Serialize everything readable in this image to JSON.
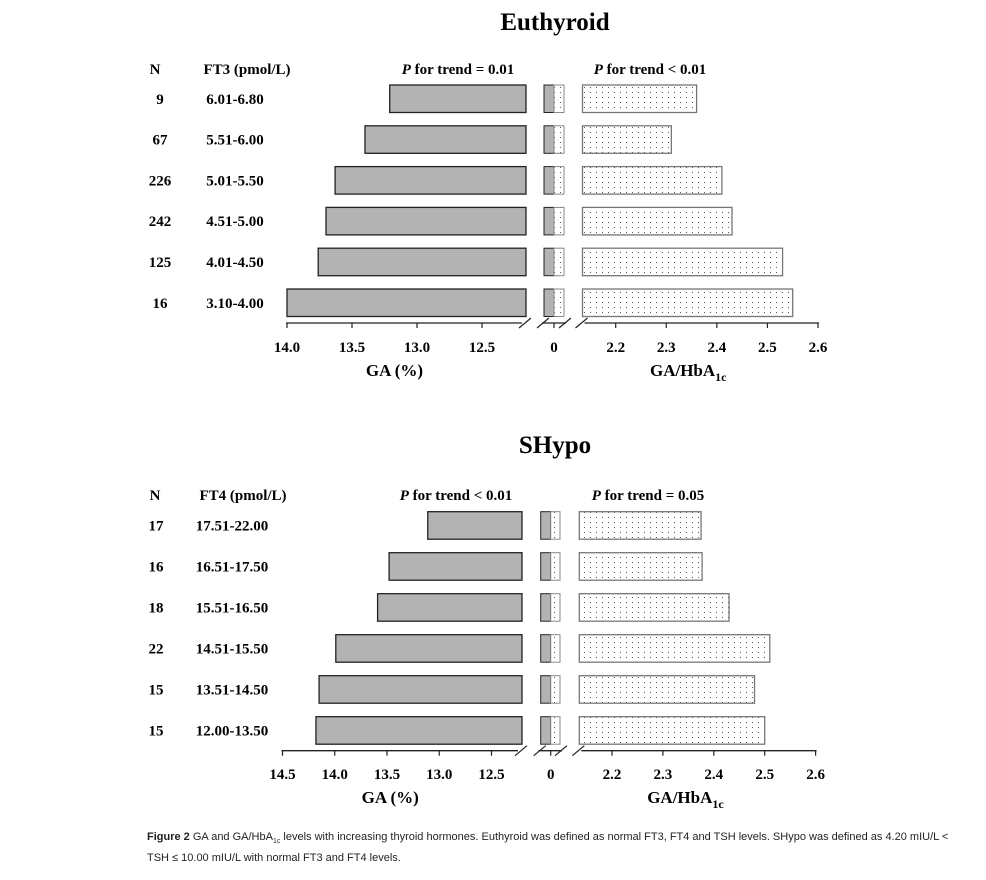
{
  "chart_data": [
    {
      "type": "bar",
      "orientation": "horizontal",
      "title": "Euthyroid",
      "n_header": "N",
      "category_header": "FT3 (pmol/L)",
      "n": [
        "9",
        "67",
        "226",
        "242",
        "125",
        "16"
      ],
      "categories": [
        "6.01-6.80",
        "5.51-6.00",
        "5.01-5.50",
        "4.51-5.00",
        "4.01-4.50",
        "3.10-4.00"
      ],
      "left": {
        "xlabel": "GA (%)",
        "trend_italic": "P",
        "trend": " for trend = 0.01",
        "values": [
          13.21,
          13.4,
          13.63,
          13.7,
          13.76,
          14.0
        ],
        "ticks": [
          "14.0",
          "13.5",
          "13.0",
          "12.5"
        ],
        "axis": "reversed, broken",
        "xlim": [
          14.0,
          12.17
        ],
        "fill": "#b3b3b3"
      },
      "break_tick": "0",
      "right": {
        "xlabel_main": "GA/HbA",
        "xlabel_sub": "1c",
        "trend_italic": "P",
        "trend": " for trend < 0.01",
        "values": [
          2.36,
          2.31,
          2.41,
          2.43,
          2.53,
          2.55
        ],
        "ticks": [
          "2.2",
          "2.3",
          "2.4",
          "2.5",
          "2.6"
        ],
        "axis": "broken",
        "xlim": [
          2.13,
          2.6
        ],
        "fill": "dotted"
      }
    },
    {
      "type": "bar",
      "orientation": "horizontal",
      "title": "SHypo",
      "n_header": "N",
      "category_header": "FT4 (pmol/L)",
      "n": [
        "17",
        "16",
        "18",
        "22",
        "15",
        "15"
      ],
      "categories": [
        "17.51-22.00",
        "16.51-17.50",
        "15.51-16.50",
        "14.51-15.50",
        "13.51-14.50",
        "12.00-13.50"
      ],
      "left": {
        "xlabel": "GA (%)",
        "trend_italic": "P",
        "trend": " for trend < 0.01",
        "values": [
          13.11,
          13.48,
          13.59,
          13.99,
          14.15,
          14.18
        ],
        "ticks": [
          "14.5",
          "14.0",
          "13.5",
          "13.0",
          "12.5"
        ],
        "axis": "reversed, broken",
        "xlim": [
          14.5,
          12.2
        ],
        "fill": "#b3b3b3"
      },
      "break_tick": "0",
      "right": {
        "xlabel_main": "GA/HbA",
        "xlabel_sub": "1c",
        "trend_italic": "P",
        "trend": " for trend = 0.05",
        "values": [
          2.375,
          2.377,
          2.43,
          2.51,
          2.48,
          2.5
        ],
        "ticks": [
          "2.2",
          "2.3",
          "2.4",
          "2.5",
          "2.6"
        ],
        "axis": "broken",
        "xlim": [
          2.13,
          2.6
        ],
        "fill": "dotted"
      }
    }
  ],
  "caption": {
    "label": "Figure 2",
    "text1": " GA and GA/HbA",
    "sub": "1c",
    "text2": " levels with increasing thyroid hormones. Euthyroid was defined as normal FT3, FT4 and TSH levels. SHypo was defined as 4.20 mIU/L < TSH ≤ 10.00 mIU/L with normal FT3 and FT4 levels."
  }
}
